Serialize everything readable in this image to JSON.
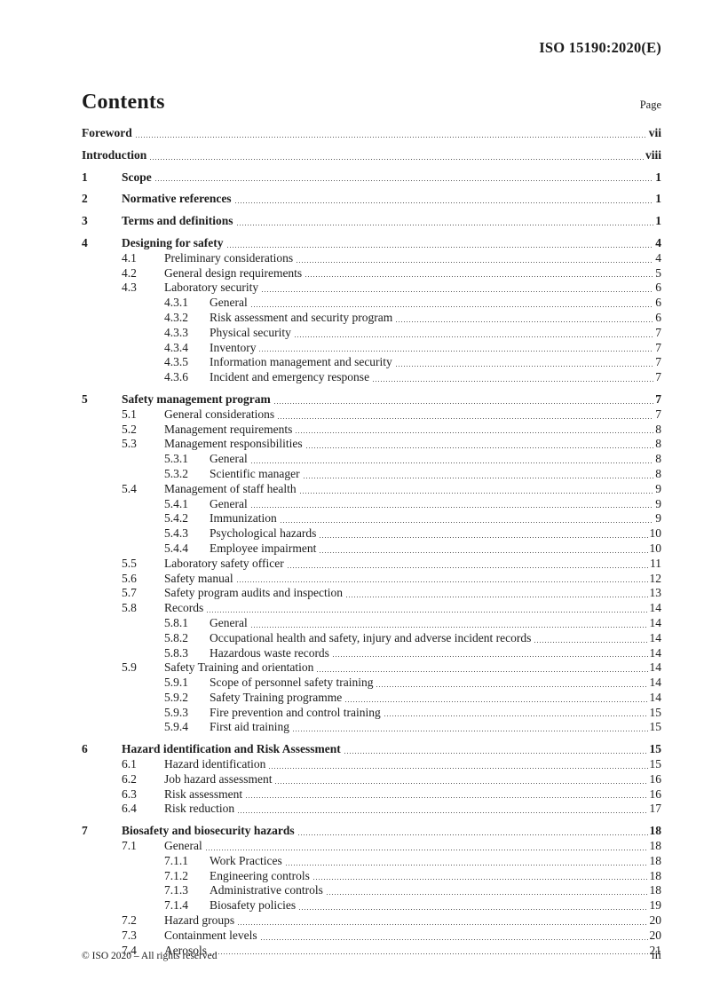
{
  "header": {
    "doc_ref": "ISO 15190:2020(E)"
  },
  "title": "Contents",
  "page_column_label": "Page",
  "toc": [
    {
      "level": 0,
      "bold": true,
      "num": "",
      "title": "Foreword",
      "page": "vii"
    },
    {
      "level": 0,
      "bold": true,
      "num": "",
      "title": "Introduction",
      "page": "viii"
    },
    {
      "level": 1,
      "bold": true,
      "num": "1",
      "title": "Scope",
      "page": "1"
    },
    {
      "level": 1,
      "bold": true,
      "num": "2",
      "title": "Normative references",
      "page": "1"
    },
    {
      "level": 1,
      "bold": true,
      "num": "3",
      "title": "Terms and definitions",
      "page": "1"
    },
    {
      "level": 1,
      "bold": true,
      "num": "4",
      "title": "Designing for safety",
      "page": "4"
    },
    {
      "level": 2,
      "bold": false,
      "num": "4.1",
      "title": "Preliminary considerations",
      "page": "4"
    },
    {
      "level": 2,
      "bold": false,
      "num": "4.2",
      "title": "General design requirements",
      "page": "5"
    },
    {
      "level": 2,
      "bold": false,
      "num": "4.3",
      "title": "Laboratory security",
      "page": "6"
    },
    {
      "level": 3,
      "bold": false,
      "num": "4.3.1",
      "title": "General",
      "page": "6"
    },
    {
      "level": 3,
      "bold": false,
      "num": "4.3.2",
      "title": "Risk assessment and security program",
      "page": "6"
    },
    {
      "level": 3,
      "bold": false,
      "num": "4.3.3",
      "title": "Physical security",
      "page": "7"
    },
    {
      "level": 3,
      "bold": false,
      "num": "4.3.4",
      "title": "Inventory",
      "page": "7"
    },
    {
      "level": 3,
      "bold": false,
      "num": "4.3.5",
      "title": "Information management and security",
      "page": "7"
    },
    {
      "level": 3,
      "bold": false,
      "num": "4.3.6",
      "title": "Incident and emergency response",
      "page": "7"
    },
    {
      "level": 1,
      "bold": true,
      "num": "5",
      "title": "Safety management program",
      "page": "7"
    },
    {
      "level": 2,
      "bold": false,
      "num": "5.1",
      "title": "General considerations",
      "page": "7"
    },
    {
      "level": 2,
      "bold": false,
      "num": "5.2",
      "title": "Management requirements",
      "page": "8"
    },
    {
      "level": 2,
      "bold": false,
      "num": "5.3",
      "title": "Management responsibilities",
      "page": "8"
    },
    {
      "level": 3,
      "bold": false,
      "num": "5.3.1",
      "title": "General",
      "page": "8"
    },
    {
      "level": 3,
      "bold": false,
      "num": "5.3.2",
      "title": "Scientific manager",
      "page": "8"
    },
    {
      "level": 2,
      "bold": false,
      "num": "5.4",
      "title": "Management of staff health",
      "page": "9"
    },
    {
      "level": 3,
      "bold": false,
      "num": "5.4.1",
      "title": "General",
      "page": "9"
    },
    {
      "level": 3,
      "bold": false,
      "num": "5.4.2",
      "title": "Immunization",
      "page": "9"
    },
    {
      "level": 3,
      "bold": false,
      "num": "5.4.3",
      "title": "Psychological hazards",
      "page": "10"
    },
    {
      "level": 3,
      "bold": false,
      "num": "5.4.4",
      "title": "Employee impairment",
      "page": "10"
    },
    {
      "level": 2,
      "bold": false,
      "num": "5.5",
      "title": "Laboratory safety officer",
      "page": "11"
    },
    {
      "level": 2,
      "bold": false,
      "num": "5.6",
      "title": "Safety manual",
      "page": "12"
    },
    {
      "level": 2,
      "bold": false,
      "num": "5.7",
      "title": "Safety program audits and inspection",
      "page": "13"
    },
    {
      "level": 2,
      "bold": false,
      "num": "5.8",
      "title": "Records",
      "page": "14"
    },
    {
      "level": 3,
      "bold": false,
      "num": "5.8.1",
      "title": "General",
      "page": "14"
    },
    {
      "level": 3,
      "bold": false,
      "num": "5.8.2",
      "title": "Occupational health and safety, injury and adverse incident records",
      "page": "14"
    },
    {
      "level": 3,
      "bold": false,
      "num": "5.8.3",
      "title": "Hazardous waste records",
      "page": "14"
    },
    {
      "level": 2,
      "bold": false,
      "num": "5.9",
      "title": "Safety Training and orientation",
      "page": "14"
    },
    {
      "level": 3,
      "bold": false,
      "num": "5.9.1",
      "title": "Scope of personnel safety training",
      "page": "14"
    },
    {
      "level": 3,
      "bold": false,
      "num": "5.9.2",
      "title": "Safety Training programme",
      "page": "14"
    },
    {
      "level": 3,
      "bold": false,
      "num": "5.9.3",
      "title": "Fire prevention and control training",
      "page": "15"
    },
    {
      "level": 3,
      "bold": false,
      "num": "5.9.4",
      "title": "First aid training",
      "page": "15"
    },
    {
      "level": 1,
      "bold": true,
      "num": "6",
      "title": "Hazard identification and Risk Assessment",
      "page": "15"
    },
    {
      "level": 2,
      "bold": false,
      "num": "6.1",
      "title": "Hazard identification",
      "page": "15"
    },
    {
      "level": 2,
      "bold": false,
      "num": "6.2",
      "title": "Job hazard assessment",
      "page": "16"
    },
    {
      "level": 2,
      "bold": false,
      "num": "6.3",
      "title": "Risk assessment",
      "page": "16"
    },
    {
      "level": 2,
      "bold": false,
      "num": "6.4",
      "title": "Risk reduction",
      "page": "17"
    },
    {
      "level": 1,
      "bold": true,
      "num": "7",
      "title": "Biosafety and biosecurity hazards",
      "page": "18"
    },
    {
      "level": 2,
      "bold": false,
      "num": "7.1",
      "title": "General",
      "page": "18"
    },
    {
      "level": 3,
      "bold": false,
      "num": "7.1.1",
      "title": "Work Practices",
      "page": "18"
    },
    {
      "level": 3,
      "bold": false,
      "num": "7.1.2",
      "title": "Engineering controls",
      "page": "18"
    },
    {
      "level": 3,
      "bold": false,
      "num": "7.1.3",
      "title": "Administrative controls",
      "page": "18"
    },
    {
      "level": 3,
      "bold": false,
      "num": "7.1.4",
      "title": "Biosafety policies",
      "page": "19"
    },
    {
      "level": 2,
      "bold": false,
      "num": "7.2",
      "title": "Hazard groups",
      "page": "20"
    },
    {
      "level": 2,
      "bold": false,
      "num": "7.3",
      "title": "Containment levels",
      "page": "20"
    },
    {
      "level": 2,
      "bold": false,
      "num": "7.4",
      "title": "Aerosols",
      "page": "21"
    }
  ],
  "footer": {
    "copyright": "© ISO 2020 – All rights reserved",
    "page_number": "iii"
  }
}
